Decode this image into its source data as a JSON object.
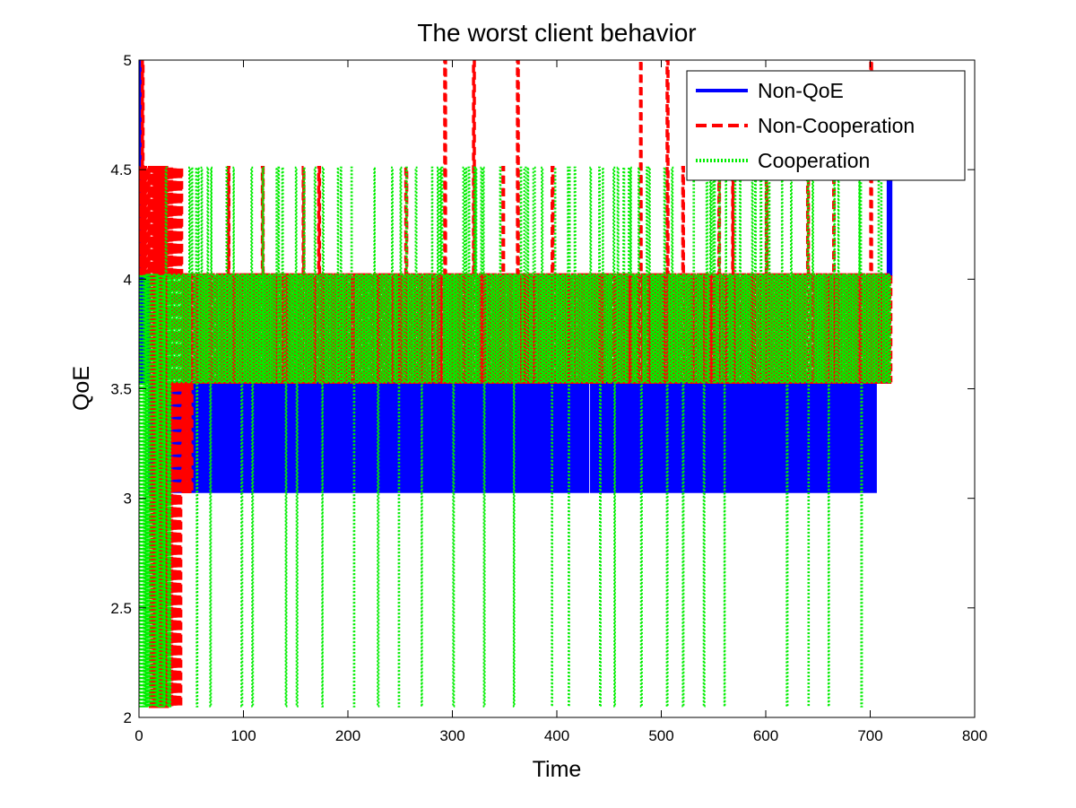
{
  "chart_data": {
    "type": "line",
    "title": "The worst client behavior",
    "xlabel": "Time",
    "ylabel": "QoE",
    "xlim": [
      0,
      800
    ],
    "ylim": [
      2,
      5
    ],
    "xticks": [
      0,
      100,
      200,
      300,
      400,
      500,
      600,
      700,
      800
    ],
    "yticks": [
      2,
      2.5,
      3,
      3.5,
      4,
      4.5,
      5
    ],
    "xtick_labels": [
      "0",
      "100",
      "200",
      "300",
      "400",
      "500",
      "600",
      "700",
      "800"
    ],
    "ytick_labels": [
      "2",
      "2.5",
      "3",
      "3.5",
      "4",
      "4.5",
      "5"
    ],
    "grid": false,
    "legend_position": "top-right",
    "series": [
      {
        "name": "Non-QoE",
        "color": "#0000ff",
        "style": "solid",
        "x_range": [
          0,
          720
        ],
        "levels": [
          3.03,
          3.53,
          4.02,
          4.51,
          5.0
        ],
        "oscillation": [
          {
            "x": [
              0,
              3
            ],
            "low": 3.53,
            "high": 5.0
          },
          {
            "x": [
              3,
              10
            ],
            "low": 3.53,
            "high": 4.02
          },
          {
            "x": [
              10,
              705
            ],
            "low": 3.03,
            "high": 3.53
          },
          {
            "x": [
              705,
              717
            ],
            "low": 3.53,
            "high": 4.02
          },
          {
            "x": [
              717,
              720
            ],
            "low": 4.02,
            "high": 4.51
          }
        ]
      },
      {
        "name": "Non-Cooperation",
        "color": "#ff0000",
        "style": "dashed",
        "x_range": [
          0,
          720
        ],
        "levels": [
          2.05,
          3.03,
          3.53,
          4.02,
          4.51,
          5.0
        ],
        "oscillation": [
          {
            "x": [
              0,
              10
            ],
            "low": 4.02,
            "high": 4.51
          },
          {
            "x": [
              10,
              40
            ],
            "low": 2.05,
            "high": 4.51
          },
          {
            "x": [
              40,
              50
            ],
            "low": 3.03,
            "high": 4.02
          },
          {
            "x": [
              50,
              720
            ],
            "low": 3.53,
            "high": 4.02
          }
        ],
        "peaks_x": [
          3,
          85,
          118,
          157,
          172,
          255,
          292,
          320,
          348,
          362,
          395,
          480,
          505,
          520,
          555,
          568,
          600,
          640,
          665,
          700
        ],
        "peak_values": [
          5.0,
          4.51,
          4.51,
          4.51,
          4.51,
          4.51,
          5.0,
          5.0,
          4.51,
          5.0,
          4.51,
          5.0,
          5.0,
          4.51,
          4.51,
          4.51,
          4.51,
          4.51,
          4.51,
          5.0
        ]
      },
      {
        "name": "Cooperation",
        "color": "#00ee00",
        "style": "dotted",
        "x_range": [
          0,
          720
        ],
        "levels": [
          2.05,
          3.03,
          3.53,
          4.02,
          4.51,
          5.0
        ],
        "oscillation": [
          {
            "x": [
              0,
              30
            ],
            "low": 2.05,
            "high": 4.02
          },
          {
            "x": [
              30,
              700
            ],
            "low": 3.53,
            "high": 4.02
          }
        ],
        "dips_x": [
          55,
          68,
          98,
          108,
          140,
          150,
          175,
          205,
          228,
          248,
          270,
          300,
          330,
          358,
          395,
          410,
          440,
          455,
          480,
          505,
          520,
          540,
          560,
          620,
          640,
          660,
          690
        ],
        "peaks_x": [
          25,
          65,
          90,
          118,
          150,
          190,
          225,
          250,
          288,
          315,
          345,
          372,
          410,
          440,
          470,
          485,
          510,
          530,
          550,
          575,
          600,
          615,
          640,
          665,
          690,
          710
        ]
      }
    ]
  }
}
